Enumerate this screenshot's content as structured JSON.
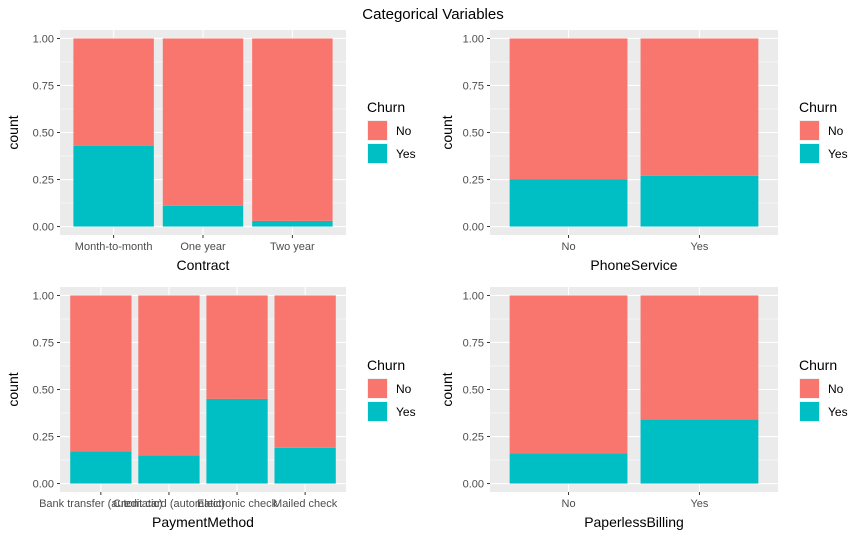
{
  "title": "Categorical Variables",
  "legend": {
    "title": "Churn",
    "items": [
      {
        "label": "No",
        "color": "#F8766D"
      },
      {
        "label": "Yes",
        "color": "#00BFC4"
      }
    ]
  },
  "chart_data": [
    {
      "type": "bar",
      "stacked": "fill",
      "xlabel": "Contract",
      "ylabel": "count",
      "categories": [
        "Month-to-month",
        "One year",
        "Two year"
      ],
      "ylim": [
        0,
        1
      ],
      "yticks": [
        "0.00",
        "0.25",
        "0.50",
        "0.75",
        "1.00"
      ],
      "legend_position": "right",
      "series": [
        {
          "name": "No",
          "values": [
            0.57,
            0.89,
            0.97
          ]
        },
        {
          "name": "Yes",
          "values": [
            0.43,
            0.11,
            0.03
          ]
        }
      ]
    },
    {
      "type": "bar",
      "stacked": "fill",
      "xlabel": "PhoneService",
      "ylabel": "count",
      "categories": [
        "No",
        "Yes"
      ],
      "ylim": [
        0,
        1
      ],
      "yticks": [
        "0.00",
        "0.25",
        "0.50",
        "0.75",
        "1.00"
      ],
      "legend_position": "right",
      "series": [
        {
          "name": "No",
          "values": [
            0.75,
            0.73
          ]
        },
        {
          "name": "Yes",
          "values": [
            0.25,
            0.27
          ]
        }
      ]
    },
    {
      "type": "bar",
      "stacked": "fill",
      "xlabel": "PaymentMethod",
      "ylabel": "count",
      "categories": [
        "Bank transfer (automatic)",
        "Credit card (automatic)",
        "Electronic check",
        "Mailed check"
      ],
      "ylim": [
        0,
        1
      ],
      "yticks": [
        "0.00",
        "0.25",
        "0.50",
        "0.75",
        "1.00"
      ],
      "legend_position": "right",
      "series": [
        {
          "name": "No",
          "values": [
            0.83,
            0.85,
            0.55,
            0.81
          ]
        },
        {
          "name": "Yes",
          "values": [
            0.17,
            0.15,
            0.45,
            0.19
          ]
        }
      ]
    },
    {
      "type": "bar",
      "stacked": "fill",
      "xlabel": "PaperlessBilling",
      "ylabel": "count",
      "categories": [
        "No",
        "Yes"
      ],
      "ylim": [
        0,
        1
      ],
      "yticks": [
        "0.00",
        "0.25",
        "0.50",
        "0.75",
        "1.00"
      ],
      "legend_position": "right",
      "series": [
        {
          "name": "No",
          "values": [
            0.84,
            0.66
          ]
        },
        {
          "name": "Yes",
          "values": [
            0.16,
            0.34
          ]
        }
      ]
    }
  ]
}
